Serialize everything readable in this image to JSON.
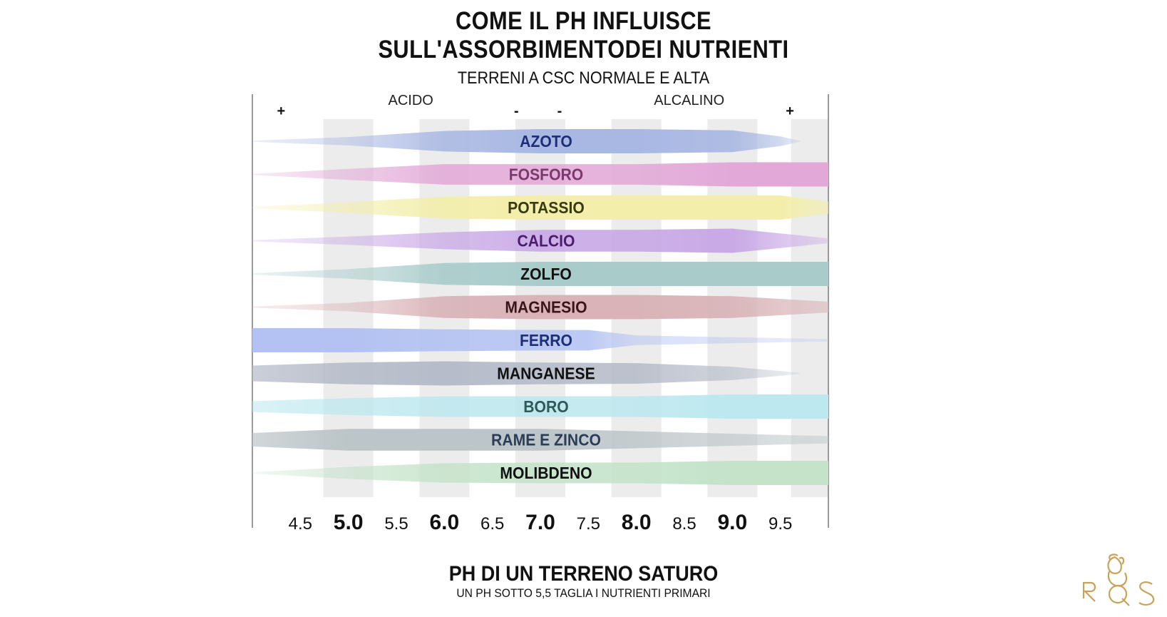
{
  "header": {
    "title_line1": "COME IL PH INFLUISCE",
    "title_line2": "SULL'ASSORBIMENTODEI NUTRIENTI",
    "subtitle": "TERRENI A CSC NORMALE E ALTA"
  },
  "footer": {
    "xlabel": "PH DI UN TERRENO SATURO",
    "note": "UN PH SOTTO 5,5 TAGLIA I NUTRIENTI PRIMARI"
  },
  "chart_data": {
    "type": "area",
    "xlim": [
      4,
      10
    ],
    "ticks": [
      {
        "label": "4.5",
        "value": 4.5,
        "major": false
      },
      {
        "label": "5.0",
        "value": 5.0,
        "major": true
      },
      {
        "label": "5.5",
        "value": 5.5,
        "major": false
      },
      {
        "label": "6.0",
        "value": 6.0,
        "major": true
      },
      {
        "label": "6.5",
        "value": 6.5,
        "major": false
      },
      {
        "label": "7.0",
        "value": 7.0,
        "major": true
      },
      {
        "label": "7.5",
        "value": 7.5,
        "major": false
      },
      {
        "label": "8.0",
        "value": 8.0,
        "major": true
      },
      {
        "label": "8.5",
        "value": 8.5,
        "major": false
      },
      {
        "label": "9.0",
        "value": 9.0,
        "major": true
      },
      {
        "label": "9.5",
        "value": 9.5,
        "major": false
      }
    ],
    "annotations": [
      {
        "text": "ACIDO",
        "x": 5.65
      },
      {
        "text": "ALCALINO",
        "x": 8.55
      }
    ],
    "intensity_marks": [
      {
        "text": "+",
        "x": 4.3
      },
      {
        "text": "-",
        "x": 6.75
      },
      {
        "text": "-",
        "x": 7.2
      },
      {
        "text": "+",
        "x": 9.6
      }
    ],
    "series": [
      {
        "name": "AZOTO",
        "color": "#a9b8e3",
        "label_color": "#1e2f7a",
        "x": [
          4.0,
          5.0,
          6.0,
          7.0,
          8.0,
          9.0,
          9.5,
          9.7
        ],
        "values": [
          0.05,
          0.35,
          0.85,
          1.0,
          1.0,
          0.9,
          0.4,
          0.05
        ]
      },
      {
        "name": "FOSFORO",
        "color": "#e2a9d8",
        "label_color": "#7a3a6e",
        "x": [
          4.0,
          5.0,
          6.0,
          7.0,
          8.0,
          9.0,
          10.0
        ],
        "values": [
          0.05,
          0.45,
          0.85,
          0.85,
          0.85,
          1.0,
          1.0
        ]
      },
      {
        "name": "POTASSIO",
        "color": "#f3eeaa",
        "label_color": "#3a3a10",
        "x": [
          4.0,
          5.0,
          6.0,
          7.0,
          8.0,
          9.0,
          9.5,
          10.0
        ],
        "values": [
          0.05,
          0.45,
          0.9,
          1.0,
          1.0,
          1.0,
          1.0,
          0.5
        ]
      },
      {
        "name": "CALCIO",
        "color": "#c9a9e6",
        "label_color": "#4a1d6e",
        "x": [
          4.0,
          5.0,
          6.0,
          7.0,
          8.0,
          9.0,
          9.5,
          10.0
        ],
        "values": [
          0.05,
          0.35,
          0.7,
          0.9,
          0.9,
          1.0,
          0.6,
          0.2
        ]
      },
      {
        "name": "ZOLFO",
        "color": "#a9cccb",
        "label_color": "#111111",
        "x": [
          4.0,
          5.0,
          6.0,
          7.0,
          8.0,
          9.0,
          10.0
        ],
        "values": [
          0.05,
          0.4,
          0.9,
          1.0,
          1.0,
          1.0,
          1.0
        ]
      },
      {
        "name": "MAGNESIO",
        "color": "#d9b3b8",
        "label_color": "#3a1518",
        "x": [
          4.0,
          5.0,
          6.0,
          7.0,
          8.0,
          9.0,
          10.0
        ],
        "values": [
          0.05,
          0.35,
          0.9,
          1.0,
          1.0,
          0.9,
          0.45
        ]
      },
      {
        "name": "FERRO",
        "color": "#b3c2f2",
        "label_color": "#1e2f7a",
        "x": [
          4.0,
          5.0,
          6.0,
          7.0,
          7.5,
          8.0,
          9.0,
          10.0
        ],
        "values": [
          1.0,
          1.0,
          0.9,
          0.85,
          0.85,
          0.4,
          0.25,
          0.1
        ]
      },
      {
        "name": "MANGANESE",
        "color": "#b6bcc9",
        "label_color": "#111111",
        "x": [
          4.0,
          5.0,
          6.0,
          7.0,
          8.0,
          9.0,
          9.7
        ],
        "values": [
          0.65,
          0.9,
          1.0,
          0.9,
          0.85,
          0.55,
          0.05
        ]
      },
      {
        "name": "BORO",
        "color": "#bde8ef",
        "label_color": "#2f5a5a",
        "x": [
          4.0,
          5.0,
          6.0,
          7.0,
          8.0,
          9.0,
          10.0
        ],
        "values": [
          0.45,
          0.7,
          0.85,
          0.85,
          0.85,
          1.0,
          1.0
        ]
      },
      {
        "name": "RAME E ZINCO",
        "color": "#bcc5c8",
        "label_color": "#2b3d5a",
        "x": [
          4.0,
          5.0,
          6.0,
          7.0,
          8.0,
          9.0,
          10.0
        ],
        "values": [
          0.55,
          0.9,
          0.9,
          0.9,
          0.7,
          0.5,
          0.3
        ]
      },
      {
        "name": "MOLIBDENO",
        "color": "#c4e3c9",
        "label_color": "#111111",
        "x": [
          4.0,
          5.0,
          6.0,
          7.0,
          8.0,
          9.0,
          10.0
        ],
        "values": [
          0.05,
          0.5,
          0.8,
          0.85,
          0.85,
          1.0,
          1.0
        ]
      }
    ]
  },
  "logo": {
    "name": "rqs-logo-icon",
    "color": "#c9a25a"
  }
}
